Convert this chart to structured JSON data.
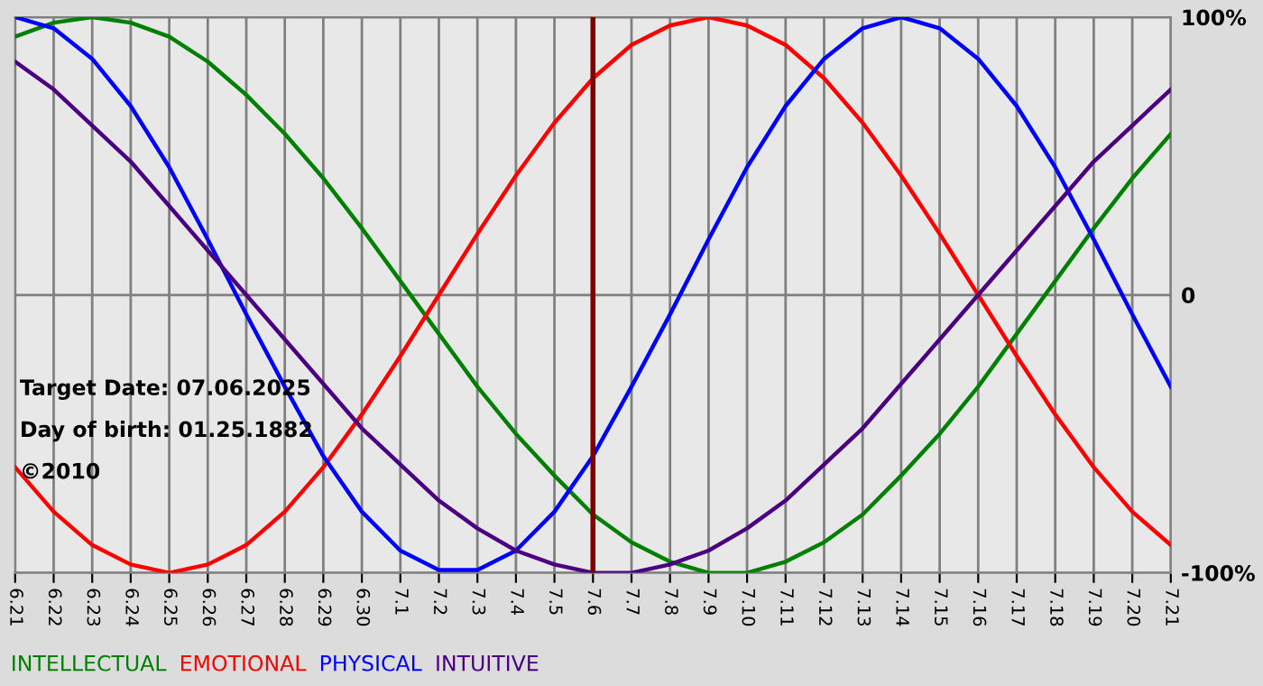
{
  "chart_data": {
    "type": "line",
    "categories": [
      "6.21",
      "6.22",
      "6.23",
      "6.24",
      "6.25",
      "6.26",
      "6.27",
      "6.28",
      "6.29",
      "6.30",
      "7.1",
      "7.2",
      "7.3",
      "7.4",
      "7.5",
      "7.6",
      "7.7",
      "7.8",
      "7.9",
      "7.10",
      "7.11",
      "7.12",
      "7.13",
      "7.14",
      "7.15",
      "7.16",
      "7.17",
      "7.18",
      "7.19",
      "7.20",
      "7.21"
    ],
    "series": [
      {
        "name": "INTELLECTUAL",
        "color": "#008000",
        "values": [
          93,
          98,
          100,
          98,
          93,
          84,
          72,
          58,
          42,
          24,
          5,
          -14,
          -33,
          -50,
          -65,
          -79,
          -89,
          -96,
          -100,
          -100,
          -96,
          -89,
          -79,
          -65,
          -50,
          -33,
          -14,
          5,
          24,
          42,
          58
        ]
      },
      {
        "name": "EMOTIONAL",
        "color": "#ff0000",
        "values": [
          -62,
          -78,
          -90,
          -97,
          -100,
          -97,
          -90,
          -78,
          -62,
          -43,
          -22,
          0,
          22,
          43,
          62,
          78,
          90,
          97,
          100,
          97,
          90,
          78,
          62,
          43,
          22,
          0,
          -22,
          -43,
          -62,
          -78,
          -90
        ]
      },
      {
        "name": "PHYSICAL",
        "color": "#0000ff",
        "values": [
          100,
          96,
          85,
          68,
          46,
          20,
          -7,
          -33,
          -58,
          -78,
          -92,
          -99,
          -99,
          -92,
          -78,
          -58,
          -33,
          -7,
          20,
          46,
          68,
          85,
          96,
          100,
          96,
          85,
          68,
          46,
          20,
          -7,
          -33
        ]
      },
      {
        "name": "INTUITIVE",
        "color": "#4b0082",
        "values": [
          84,
          74,
          61,
          48,
          32,
          16,
          0,
          -16,
          -32,
          -48,
          -61,
          -74,
          -84,
          -92,
          -97,
          -100,
          -100,
          -97,
          -92,
          -84,
          -74,
          -61,
          -48,
          -32,
          -16,
          0,
          16,
          32,
          48,
          61,
          74
        ]
      }
    ],
    "ylim": [
      -100,
      100
    ],
    "yticks": [
      {
        "value": 100,
        "label": "100%"
      },
      0,
      {
        "value": -100,
        "label": "-100%"
      }
    ],
    "grid": true,
    "legend": "bottom",
    "ref_lines": [
      {
        "axis": "x",
        "value": "7.6",
        "color": "#800000"
      }
    ],
    "annotations": [
      "Target Date: 07.06.2025",
      "Day of birth: 01.25.1882",
      "©2010"
    ]
  }
}
